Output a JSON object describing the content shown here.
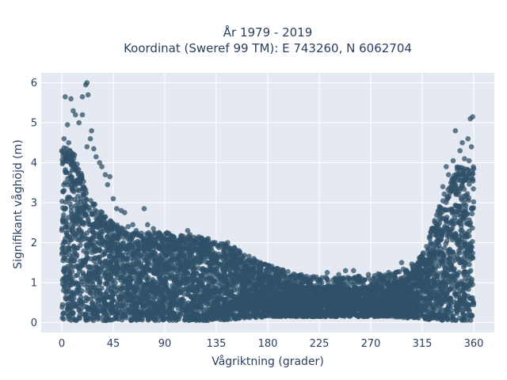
{
  "chart_data": {
    "type": "scatter",
    "title": "År 1979 - 2019",
    "subtitle": "Koordinat (Sweref 99 TM): E 743260, N 6062704",
    "xlabel": "Vågriktning (grader)",
    "ylabel": "Signifikant våghöjd (m)",
    "xlim": [
      -18,
      378
    ],
    "ylim": [
      -0.25,
      6.25
    ],
    "x_ticks": [
      0,
      45,
      90,
      135,
      180,
      225,
      270,
      315,
      360
    ],
    "y_ticks": [
      0,
      1,
      2,
      3,
      4,
      5,
      6
    ],
    "grid": true,
    "legend": "none",
    "marker_color": "#2f5068",
    "plot_background": "#e5e9f2",
    "density_band": {
      "x": [
        0,
        10,
        20,
        30,
        45,
        60,
        75,
        90,
        105,
        120,
        135,
        150,
        165,
        180,
        195,
        210,
        225,
        240,
        255,
        270,
        285,
        300,
        315,
        325,
        335,
        345,
        360
      ],
      "lower": [
        0.05,
        0.05,
        0.05,
        0.05,
        0.05,
        0.05,
        0.05,
        0.05,
        0.05,
        0.05,
        0.05,
        0.08,
        0.1,
        0.15,
        0.15,
        0.15,
        0.15,
        0.15,
        0.15,
        0.15,
        0.15,
        0.12,
        0.1,
        0.05,
        0.05,
        0.05,
        0.05
      ],
      "upper": [
        4.1,
        4.0,
        3.2,
        2.6,
        2.2,
        1.95,
        1.95,
        1.95,
        1.9,
        1.85,
        1.75,
        1.6,
        1.35,
        1.15,
        1.0,
        0.9,
        0.85,
        0.85,
        0.85,
        0.9,
        0.95,
        1.05,
        1.4,
        2.2,
        3.0,
        3.6,
        3.6
      ]
    },
    "outliers": [
      {
        "x": 3,
        "y": 5.65
      },
      {
        "x": 8,
        "y": 5.6
      },
      {
        "x": 18,
        "y": 5.65
      },
      {
        "x": 21,
        "y": 5.95
      },
      {
        "x": 22,
        "y": 6.0
      },
      {
        "x": 23,
        "y": 5.7
      },
      {
        "x": 10,
        "y": 5.3
      },
      {
        "x": 12,
        "y": 5.2
      },
      {
        "x": 15,
        "y": 5.0
      },
      {
        "x": 18,
        "y": 5.2
      },
      {
        "x": 5,
        "y": 4.95
      },
      {
        "x": 26,
        "y": 4.8
      },
      {
        "x": 25,
        "y": 4.6
      },
      {
        "x": 2,
        "y": 4.6
      },
      {
        "x": 6,
        "y": 4.5
      },
      {
        "x": 28,
        "y": 4.35
      },
      {
        "x": 30,
        "y": 4.15
      },
      {
        "x": 22,
        "y": 4.4
      },
      {
        "x": 33,
        "y": 4.0
      },
      {
        "x": 35,
        "y": 3.9
      },
      {
        "x": 38,
        "y": 3.7
      },
      {
        "x": 42,
        "y": 3.65
      },
      {
        "x": 40,
        "y": 3.45
      },
      {
        "x": 45,
        "y": 3.1
      },
      {
        "x": 48,
        "y": 2.85
      },
      {
        "x": 52,
        "y": 2.8
      },
      {
        "x": 55,
        "y": 2.75
      },
      {
        "x": 58,
        "y": 2.4
      },
      {
        "x": 62,
        "y": 2.45
      },
      {
        "x": 65,
        "y": 2.3
      },
      {
        "x": 72,
        "y": 2.85
      },
      {
        "x": 75,
        "y": 2.45
      },
      {
        "x": 80,
        "y": 2.35
      },
      {
        "x": 85,
        "y": 2.25
      },
      {
        "x": 92,
        "y": 2.25
      },
      {
        "x": 97,
        "y": 2.15
      },
      {
        "x": 110,
        "y": 2.3
      },
      {
        "x": 112,
        "y": 2.2
      },
      {
        "x": 118,
        "y": 2.1
      },
      {
        "x": 128,
        "y": 2.1
      },
      {
        "x": 132,
        "y": 2.0
      },
      {
        "x": 145,
        "y": 2.0
      },
      {
        "x": 150,
        "y": 1.8
      },
      {
        "x": 155,
        "y": 1.75
      },
      {
        "x": 162,
        "y": 1.55
      },
      {
        "x": 170,
        "y": 1.4
      },
      {
        "x": 176,
        "y": 1.45
      },
      {
        "x": 182,
        "y": 1.3
      },
      {
        "x": 188,
        "y": 1.2
      },
      {
        "x": 194,
        "y": 1.25
      },
      {
        "x": 200,
        "y": 1.15
      },
      {
        "x": 213,
        "y": 1.1
      },
      {
        "x": 220,
        "y": 1.15
      },
      {
        "x": 232,
        "y": 1.25
      },
      {
        "x": 242,
        "y": 1.2
      },
      {
        "x": 248,
        "y": 1.3
      },
      {
        "x": 255,
        "y": 1.3
      },
      {
        "x": 262,
        "y": 1.1
      },
      {
        "x": 268,
        "y": 1.2
      },
      {
        "x": 272,
        "y": 1.1
      },
      {
        "x": 284,
        "y": 1.15
      },
      {
        "x": 292,
        "y": 1.25
      },
      {
        "x": 297,
        "y": 1.5
      },
      {
        "x": 303,
        "y": 1.2
      },
      {
        "x": 310,
        "y": 1.35
      },
      {
        "x": 316,
        "y": 1.5
      },
      {
        "x": 320,
        "y": 1.7
      },
      {
        "x": 326,
        "y": 2.3
      },
      {
        "x": 330,
        "y": 2.9
      },
      {
        "x": 333,
        "y": 3.4
      },
      {
        "x": 336,
        "y": 3.9
      },
      {
        "x": 340,
        "y": 3.5
      },
      {
        "x": 344,
        "y": 4.8
      },
      {
        "x": 348,
        "y": 4.3
      },
      {
        "x": 350,
        "y": 4.5
      },
      {
        "x": 352,
        "y": 4.1
      },
      {
        "x": 355,
        "y": 4.6
      },
      {
        "x": 356,
        "y": 4.05
      },
      {
        "x": 357,
        "y": 5.1
      },
      {
        "x": 359,
        "y": 5.15
      },
      {
        "x": 358,
        "y": 4.4
      },
      {
        "x": 360,
        "y": 3.85
      },
      {
        "x": 342,
        "y": 4.05
      },
      {
        "x": 338,
        "y": 3.7
      }
    ]
  }
}
